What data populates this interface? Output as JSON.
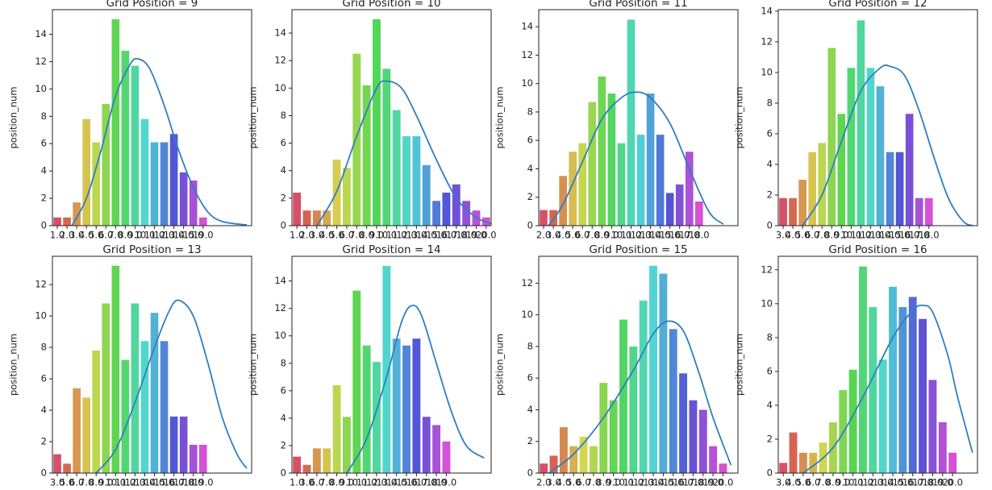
{
  "chart_data": [
    {
      "type": "bar",
      "title": "Grid Position = 9",
      "ylabel": "position_num",
      "palette": "husl",
      "categories": [
        "1.0",
        "2.0",
        "3.0",
        "4.0",
        "5.0",
        "6.0",
        "7.0",
        "8.0",
        "9.0",
        "10.0",
        "11.0",
        "12.0",
        "13.0",
        "14.0",
        "15.0",
        "19.0"
      ],
      "values": [
        0.6,
        0.6,
        1.7,
        7.8,
        6.1,
        8.9,
        15.1,
        12.8,
        11.7,
        7.8,
        6.1,
        6.1,
        6.7,
        3.9,
        3.3,
        0.6
      ],
      "xlim": [
        -0.5,
        20
      ],
      "ylim": [
        0,
        15.8
      ],
      "yticks": [
        0,
        2,
        4,
        6,
        8,
        10,
        12,
        14
      ],
      "line": {
        "color": "#2f7fbf",
        "x": [
          1.5,
          3,
          4.5,
          6,
          7.5,
          8.3,
          9.5,
          11,
          12.5,
          14,
          15.5,
          17,
          19.5
        ],
        "values": [
          0,
          2,
          5.5,
          9.5,
          11.8,
          12.2,
          11.5,
          8.8,
          5.5,
          2.8,
          1,
          0.3,
          0.05
        ]
      }
    },
    {
      "type": "bar",
      "title": "Grid Position = 10",
      "ylabel": "position_num",
      "palette": "husl",
      "categories": [
        "1.0",
        "2.0",
        "3.0",
        "4.0",
        "5.0",
        "6.0",
        "7.0",
        "8.0",
        "9.0",
        "10.0",
        "11.0",
        "12.0",
        "13.0",
        "14.0",
        "15.0",
        "16.0",
        "17.0",
        "18.0",
        "19.0",
        "20.0"
      ],
      "values": [
        2.4,
        1.1,
        1.1,
        1.1,
        4.8,
        4.2,
        12.5,
        10.2,
        15,
        11.4,
        8.4,
        6.5,
        6.5,
        4.4,
        1.8,
        2.4,
        3,
        1.8,
        1.1,
        0.6
      ],
      "xlim": [
        -0.5,
        19.5
      ],
      "ylim": [
        0,
        15.7
      ],
      "yticks": [
        0,
        2,
        4,
        6,
        8,
        10,
        12,
        14
      ],
      "line": {
        "color": "#2f7fbf",
        "x": [
          2,
          4,
          6,
          8,
          9,
          10.5,
          12,
          14,
          16,
          18,
          19.5
        ],
        "values": [
          0,
          2.5,
          6.5,
          10,
          10.5,
          10,
          8,
          4.8,
          2,
          0.6,
          0.15
        ]
      }
    },
    {
      "type": "bar",
      "title": "Grid Position = 11",
      "ylabel": "position_num",
      "palette": "husl",
      "categories": [
        "2.0",
        "3.0",
        "4.0",
        "5.0",
        "6.0",
        "7.0",
        "8.0",
        "9.0",
        "10.0",
        "11.0",
        "12.0",
        "13.0",
        "14.0",
        "15.0",
        "16.0",
        "17.0",
        "18.0"
      ],
      "values": [
        1.1,
        1.1,
        3.5,
        5.2,
        5.8,
        8.7,
        10.5,
        9.3,
        5.8,
        14.5,
        6.4,
        9.3,
        6.4,
        2.3,
        2.9,
        5.2,
        1.7
      ],
      "xlim": [
        -0.5,
        20
      ],
      "ylim": [
        0,
        15.2
      ],
      "yticks": [
        0,
        2,
        4,
        6,
        8,
        10,
        12,
        14
      ],
      "line": {
        "color": "#2f7fbf",
        "x": [
          0.5,
          2,
          4,
          6,
          8,
          9.5,
          11,
          13,
          15,
          17,
          18.5
        ],
        "values": [
          0,
          1.5,
          4.5,
          7.5,
          9,
          9.4,
          9,
          7.2,
          4,
          1,
          0.1
        ]
      }
    },
    {
      "type": "bar",
      "title": "Grid Position = 12",
      "ylabel": "position_num",
      "palette": "husl",
      "categories": [
        "3.0",
        "4.0",
        "5.0",
        "6.0",
        "7.0",
        "8.0",
        "9.0",
        "10.0",
        "11.0",
        "12.0",
        "13.0",
        "14.0",
        "15.0",
        "16.0",
        "17.0",
        "18.0"
      ],
      "values": [
        1.8,
        1.8,
        3,
        4.8,
        5.4,
        11.6,
        7.3,
        10.3,
        13.4,
        10.3,
        9.1,
        4.8,
        4.8,
        7.3,
        1.8,
        1.8
      ],
      "xlim": [
        -0.5,
        20
      ],
      "ylim": [
        0,
        14.1
      ],
      "yticks": [
        0,
        2,
        4,
        6,
        8,
        10,
        12,
        14
      ],
      "line": {
        "color": "#2f7fbf",
        "x": [
          2,
          4,
          6,
          8,
          10,
          11,
          12.5,
          14,
          15.5,
          17,
          18.5,
          19.5
        ],
        "values": [
          0,
          2,
          5.5,
          8.8,
          10.3,
          10.4,
          9.8,
          7.5,
          4.5,
          1.8,
          0.3,
          0
        ]
      }
    },
    {
      "type": "bar",
      "title": "Grid Position = 13",
      "ylabel": "position_num",
      "palette": "husl",
      "categories": [
        "3.0",
        "5.0",
        "6.0",
        "7.0",
        "8.0",
        "9.0",
        "10.0",
        "11.0",
        "12.0",
        "13.0",
        "14.0",
        "15.0",
        "16.0",
        "17.0",
        "18.0",
        "19.0"
      ],
      "values": [
        1.2,
        0.6,
        5.4,
        4.8,
        7.8,
        10.8,
        13.2,
        7.2,
        10.8,
        8.4,
        10.2,
        8.4,
        3.6,
        3.6,
        1.8,
        1.8
      ],
      "xlim": [
        -0.5,
        20
      ],
      "ylim": [
        0,
        13.8
      ],
      "yticks": [
        0,
        2,
        4,
        6,
        8,
        10,
        12
      ],
      "line": {
        "color": "#2f7fbf",
        "x": [
          4,
          6,
          8,
          10,
          11.5,
          12.5,
          14,
          15.5,
          17,
          18.5,
          19.5
        ],
        "values": [
          0,
          1.5,
          4.5,
          8,
          10.3,
          11,
          10,
          7,
          3.5,
          1.2,
          0.3
        ]
      }
    },
    {
      "type": "bar",
      "title": "Grid Position = 14",
      "ylabel": "position_num",
      "palette": "husl",
      "categories": [
        "1.0",
        "3.0",
        "6.0",
        "7.0",
        "8.0",
        "9.0",
        "10.0",
        "11.0",
        "12.0",
        "13.0",
        "14.0",
        "15.0",
        "16.0",
        "17.0",
        "18.0",
        "19.0"
      ],
      "values": [
        1.2,
        0.6,
        1.8,
        1.8,
        6.4,
        4.1,
        13.3,
        9.3,
        8.1,
        15.1,
        9.8,
        9.3,
        9.8,
        4.1,
        3.5,
        2.3
      ],
      "xlim": [
        -0.5,
        19.5
      ],
      "ylim": [
        0,
        15.8
      ],
      "yticks": [
        0,
        2,
        4,
        6,
        8,
        10,
        12,
        14
      ],
      "line": {
        "color": "#2f7fbf",
        "x": [
          5,
          7,
          9,
          10.5,
          11.5,
          12.5,
          14,
          15.5,
          17,
          18.8
        ],
        "values": [
          0,
          2.5,
          7,
          11,
          12.2,
          11.5,
          8,
          4.5,
          2,
          1.1
        ]
      }
    },
    {
      "type": "bar",
      "title": "Grid Position = 15",
      "ylabel": "position_num",
      "palette": "husl",
      "categories": [
        "2.0",
        "3.0",
        "4.0",
        "5.0",
        "6.0",
        "7.0",
        "8.0",
        "9.0",
        "10.0",
        "11.0",
        "12.0",
        "13.0",
        "14.0",
        "15.0",
        "16.0",
        "17.0",
        "18.0",
        "19.0",
        "20.0"
      ],
      "values": [
        0.6,
        1.1,
        2.9,
        1.7,
        2.3,
        1.7,
        5.7,
        4.6,
        9.7,
        8.0,
        10.9,
        13.1,
        12.6,
        9.1,
        6.3,
        4.6,
        4.0,
        1.7,
        0.6
      ],
      "xlim": [
        -0.5,
        19.5
      ],
      "ylim": [
        0,
        13.7
      ],
      "yticks": [
        0,
        2,
        4,
        6,
        8,
        10,
        12
      ],
      "line": {
        "color": "#2f7fbf",
        "x": [
          0.5,
          3,
          6,
          9,
          11,
          12.5,
          14,
          15.5,
          17,
          18.8
        ],
        "values": [
          0,
          1.2,
          3.5,
          6.5,
          8.8,
          9.6,
          9,
          6.5,
          3.5,
          0.5
        ]
      }
    },
    {
      "type": "bar",
      "title": "Grid Position = 16",
      "ylabel": "position_num",
      "palette": "husl",
      "categories": [
        "3.0",
        "4.0",
        "5.0",
        "6.0",
        "7.0",
        "8.0",
        "9.0",
        "10.0",
        "11.0",
        "12.0",
        "13.0",
        "14.0",
        "15.0",
        "16.0",
        "17.0",
        "18.0",
        "19.0",
        "20.0"
      ],
      "values": [
        0.6,
        2.4,
        1.2,
        1.2,
        1.8,
        3,
        4.9,
        6.1,
        12.2,
        9.8,
        6.7,
        11,
        9.8,
        10.4,
        9.1,
        5.5,
        3,
        1.2
      ],
      "xlim": [
        -0.5,
        19.5
      ],
      "ylim": [
        0,
        12.8
      ],
      "yticks": [
        0,
        2,
        4,
        6,
        8,
        10,
        12
      ],
      "line": {
        "color": "#2f7fbf",
        "x": [
          2,
          5,
          8,
          11,
          13,
          14,
          15,
          16.5,
          17.5,
          19
        ],
        "values": [
          0,
          1.5,
          4.5,
          8,
          9.6,
          9.9,
          9.5,
          7,
          4.5,
          1.2
        ]
      }
    }
  ]
}
